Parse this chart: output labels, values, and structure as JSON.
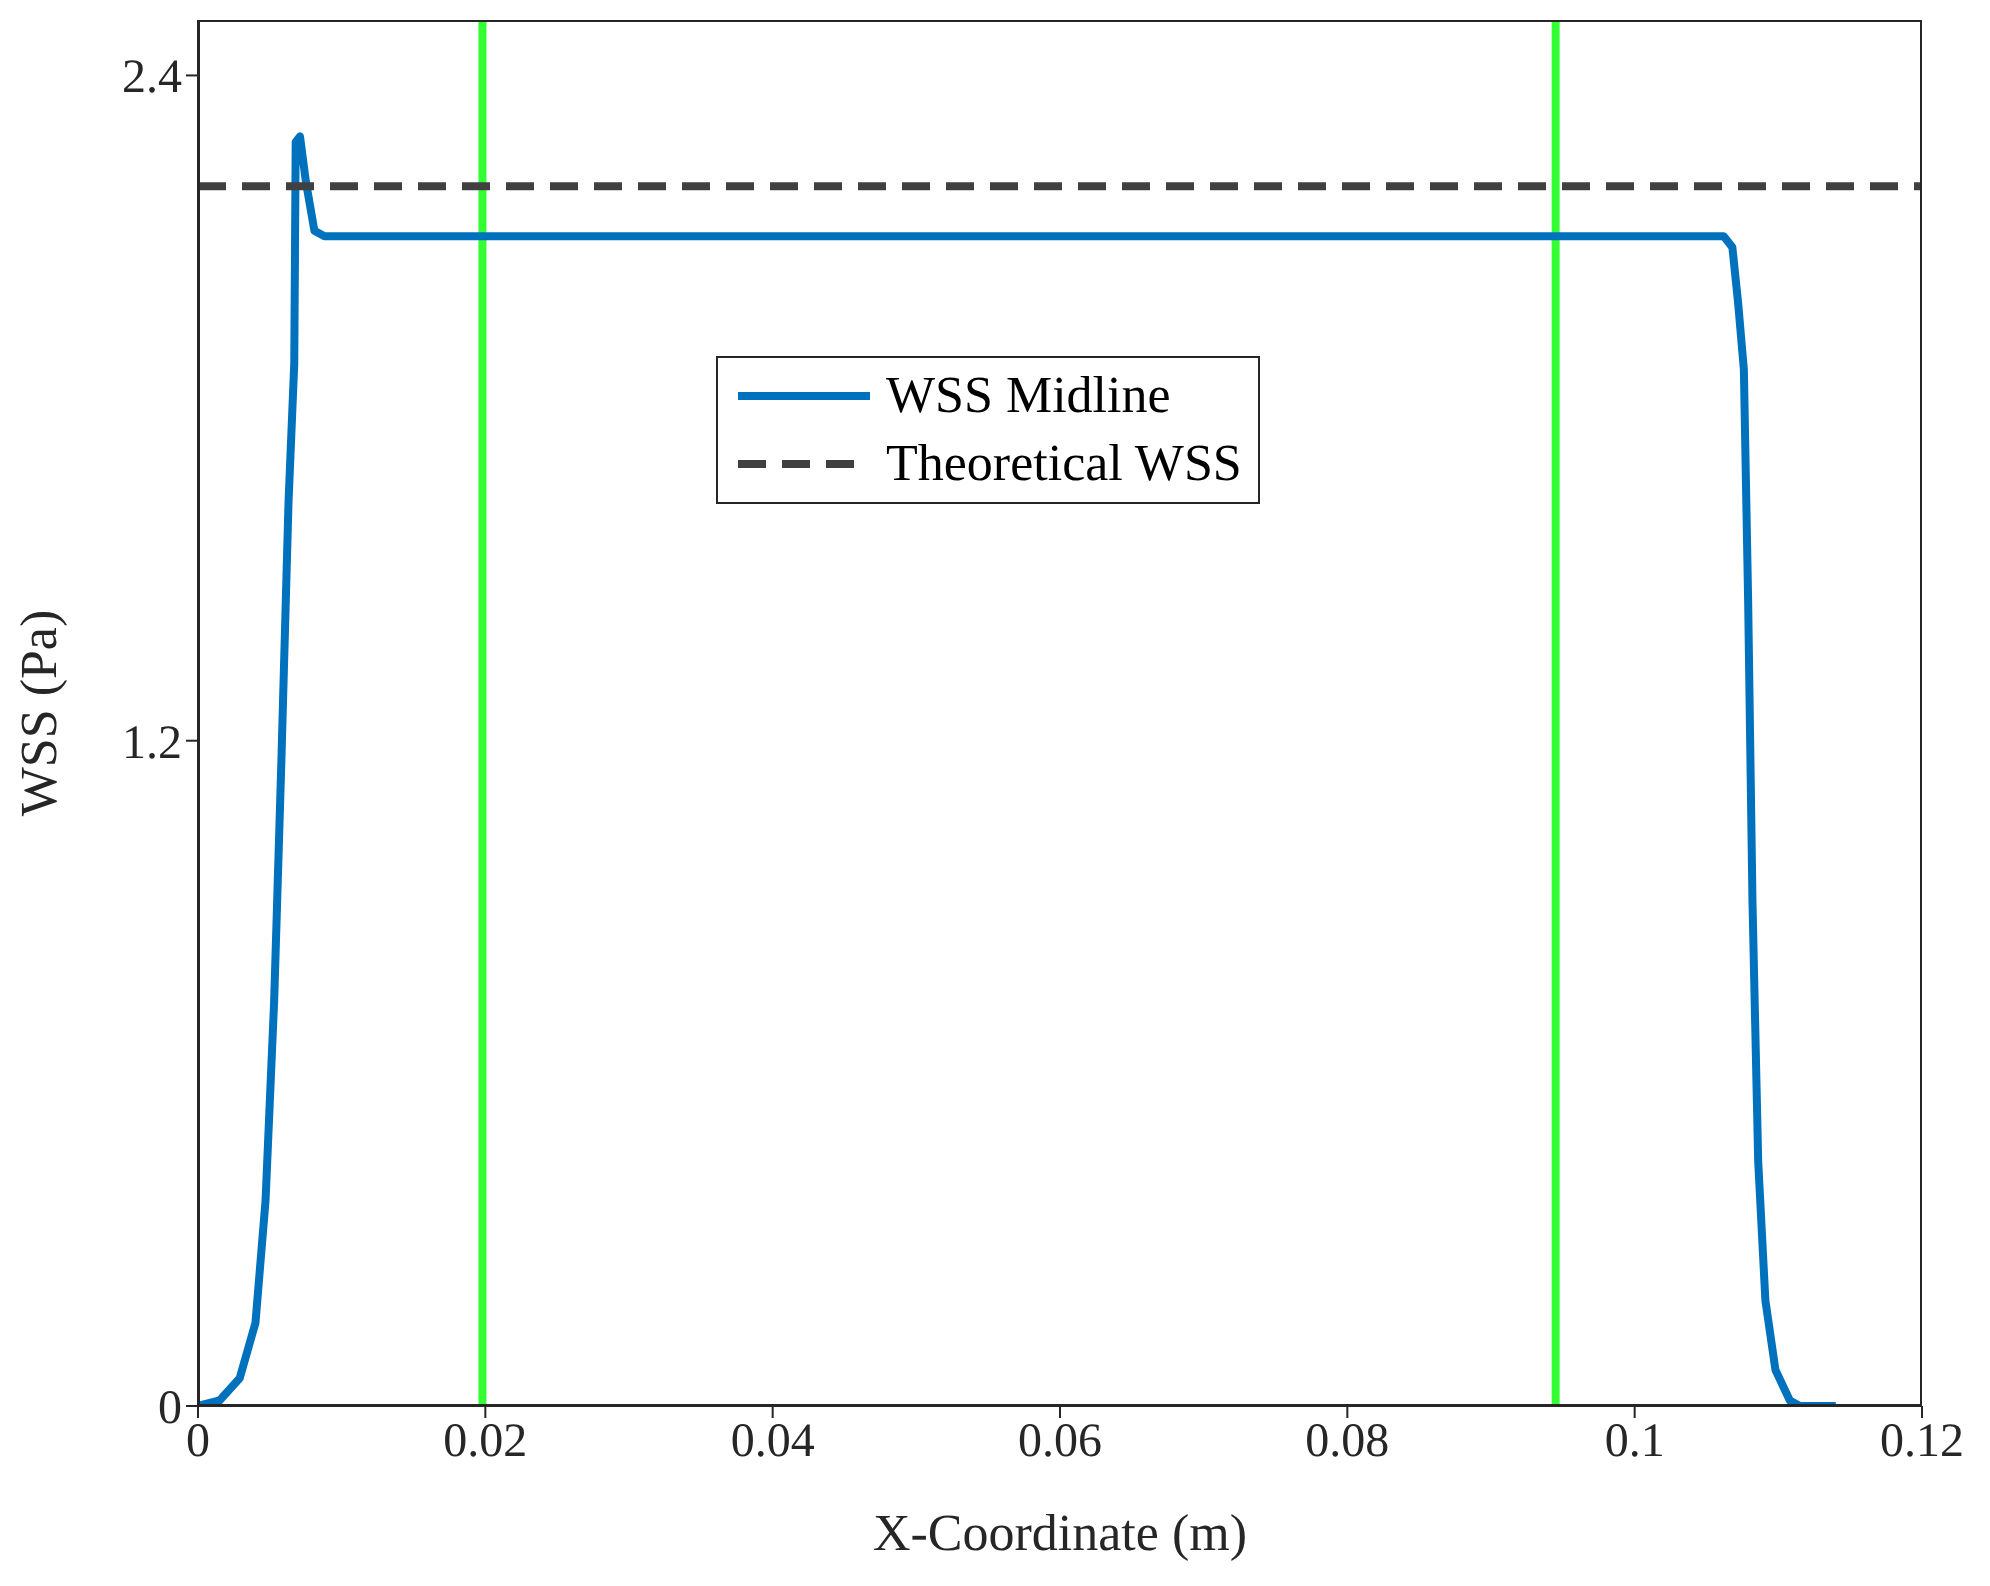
{
  "chart_data": {
    "type": "line",
    "xlabel": "X-Coordinate (m)",
    "ylabel": "WSS (Pa)",
    "xlim": [
      0,
      0.12
    ],
    "xticks": [
      0,
      0.02,
      0.04,
      0.06,
      0.08,
      0.1,
      0.12
    ],
    "ylim": [
      0,
      2.5
    ],
    "yticks": [
      0,
      1.2,
      2.4
    ],
    "grid": false,
    "legend": "top",
    "series": [
      {
        "name": "WSS Midline",
        "color": "#0072bd",
        "line_style": "solid",
        "x": [
          0,
          0.0015,
          0.0029,
          0.004,
          0.0047,
          0.0053,
          0.0058,
          0.0063,
          0.0067,
          0.0068,
          0.0071,
          0.0075,
          0.0081,
          0.0088,
          0.0099,
          0.02,
          0.04,
          0.06,
          0.08,
          0.1,
          0.1062,
          0.1068,
          0.1072,
          0.1076,
          0.1079,
          0.1082,
          0.1086,
          0.1091,
          0.1098,
          0.1108,
          0.1115,
          0.114
        ],
        "values": [
          0,
          0.01,
          0.05,
          0.15,
          0.37,
          0.73,
          1.16,
          1.63,
          1.88,
          2.28,
          2.29,
          2.21,
          2.12,
          2.11,
          2.11,
          2.11,
          2.11,
          2.11,
          2.11,
          2.11,
          2.11,
          2.09,
          1.99,
          1.87,
          1.45,
          0.91,
          0.44,
          0.19,
          0.065,
          0.01,
          0,
          0
        ]
      },
      {
        "name": "Theoretical WSS",
        "color": "#404040",
        "line_style": "dashed",
        "x": [
          0,
          0.12
        ],
        "values": [
          2.2,
          2.2
        ]
      }
    ],
    "ref_lines": [
      {
        "axis": "x",
        "value": 0.0198,
        "color": "#33ff33"
      },
      {
        "axis": "x",
        "value": 0.0945,
        "color": "#33ff33"
      }
    ]
  }
}
